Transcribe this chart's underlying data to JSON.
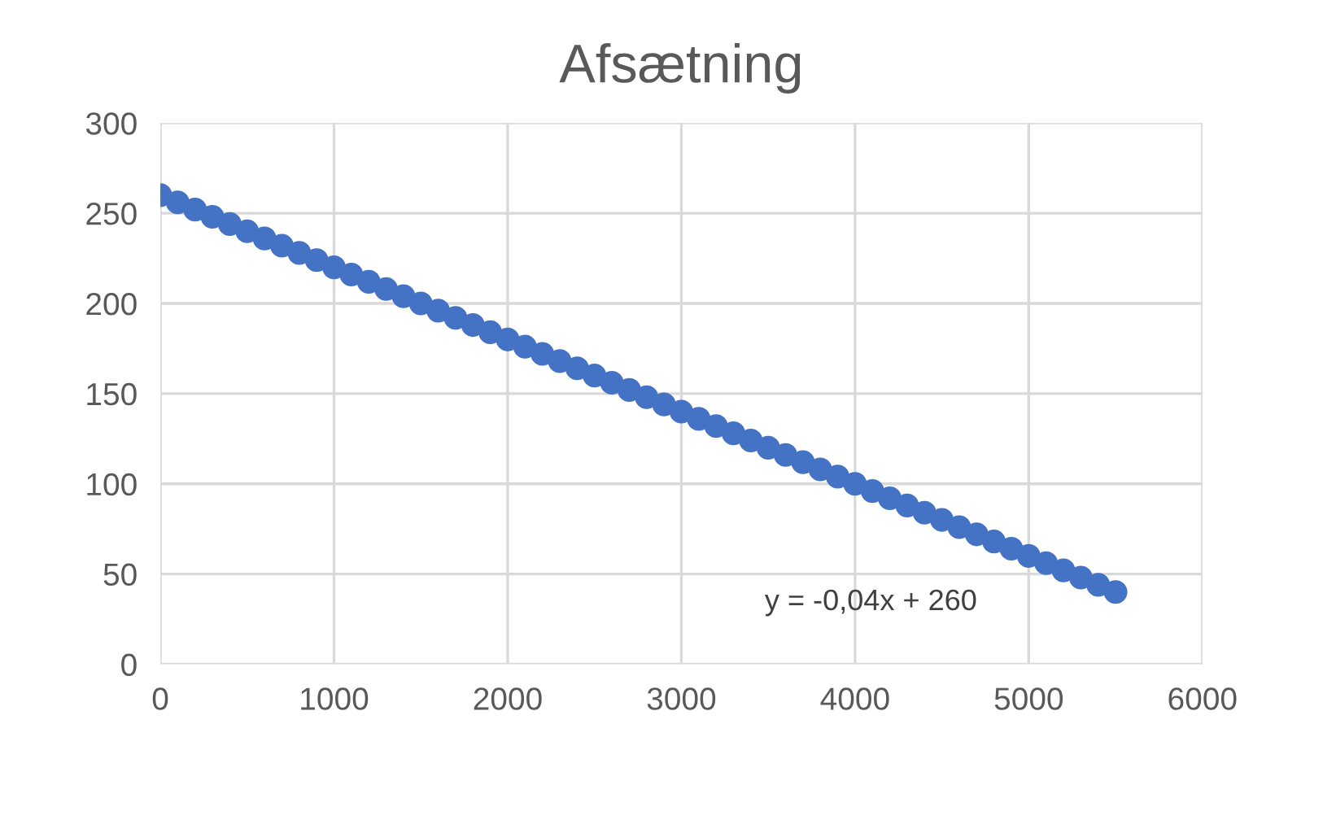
{
  "chart_data": {
    "type": "scatter",
    "title": "Afsætning",
    "x": [
      0,
      100,
      200,
      300,
      400,
      500,
      600,
      700,
      800,
      900,
      1000,
      1100,
      1200,
      1300,
      1400,
      1500,
      1600,
      1700,
      1800,
      1900,
      2000,
      2100,
      2200,
      2300,
      2400,
      2500,
      2600,
      2700,
      2800,
      2900,
      3000,
      3100,
      3200,
      3300,
      3400,
      3500,
      3600,
      3700,
      3800,
      3900,
      4000,
      4100,
      4200,
      4300,
      4400,
      4500,
      4600,
      4700,
      4800,
      4900,
      5000,
      5100,
      5200,
      5300,
      5400,
      5500
    ],
    "series": [
      {
        "color": "#4472c4",
        "values": [
          260,
          256,
          252,
          248,
          244,
          240,
          236,
          232,
          228,
          224,
          220,
          216,
          212,
          208,
          204,
          200,
          196,
          192,
          188,
          184,
          180,
          176,
          172,
          168,
          164,
          160,
          156,
          152,
          148,
          144,
          140,
          136,
          132,
          128,
          124,
          120,
          116,
          112,
          108,
          104,
          100,
          96,
          92,
          88,
          84,
          80,
          76,
          72,
          68,
          64,
          60,
          56,
          52,
          48,
          44,
          40
        ]
      }
    ],
    "annotations": [
      "y = -0,04x + 260"
    ],
    "xlim": [
      0,
      6000
    ],
    "xticks": [
      0,
      1000,
      2000,
      3000,
      4000,
      5000,
      6000
    ],
    "ylim": [
      0,
      300
    ],
    "yticks": [
      0,
      50,
      100,
      150,
      200,
      250,
      300
    ],
    "grid": true,
    "marker": "circle",
    "legend": false
  }
}
